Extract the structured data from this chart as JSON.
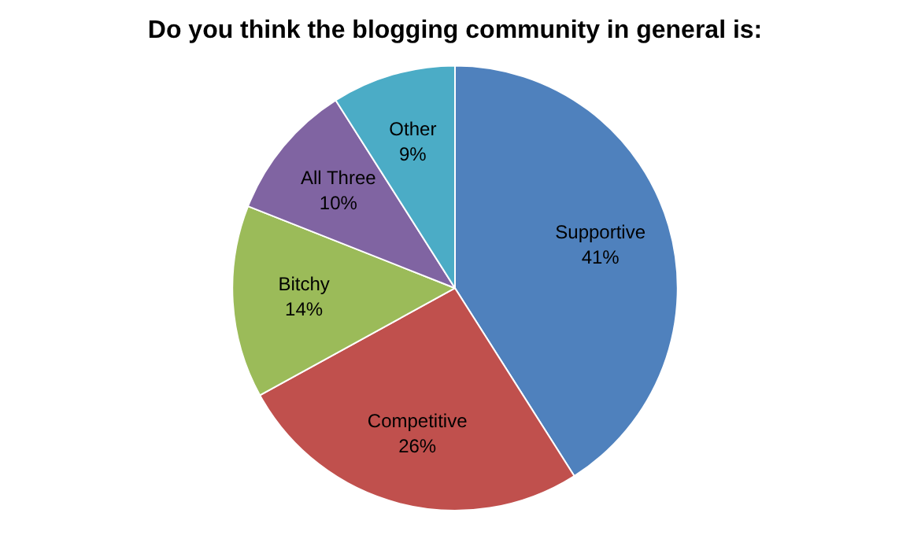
{
  "chart_data": {
    "type": "pie",
    "title": "Do you think the blogging community in general is:",
    "categories": [
      "Supportive",
      "Competitive",
      "Bitchy",
      "All Three",
      "Other"
    ],
    "values": [
      41,
      26,
      14,
      10,
      9
    ],
    "value_labels": [
      "41%",
      "26%",
      "14%",
      "10%",
      "9%"
    ],
    "colors": [
      "#4f81bd",
      "#c0504d",
      "#9bbb59",
      "#8064a2",
      "#4bacc6"
    ],
    "legend": false
  }
}
